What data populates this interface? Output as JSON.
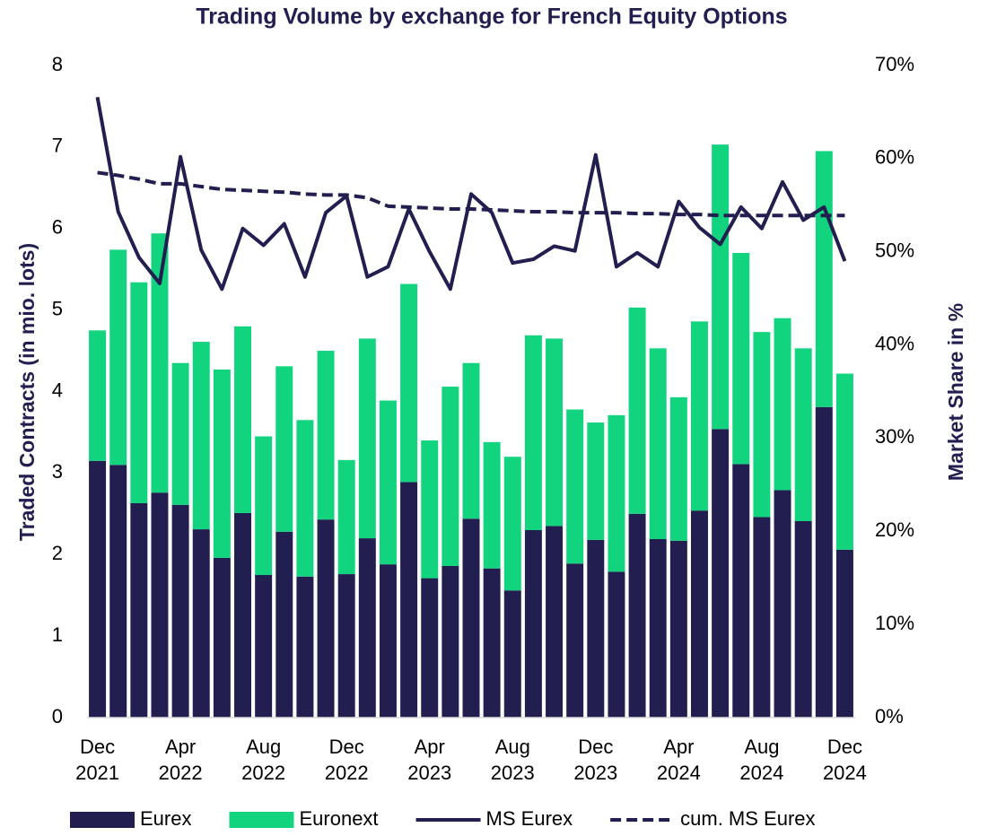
{
  "chart_data": {
    "type": "bar",
    "stacked": true,
    "title": "Trading Volume by exchange for French Equity Options",
    "y_label": "Traded Contracts (in mio. lots)",
    "y2_label": "Market Share in %",
    "categories": [
      "Dec\n2021",
      null,
      null,
      null,
      "Apr\n2022",
      null,
      null,
      null,
      "Aug\n2022",
      null,
      null,
      null,
      "Dec\n2022",
      null,
      null,
      null,
      "Apr\n2023",
      null,
      null,
      null,
      "Aug\n2023",
      null,
      null,
      null,
      "Dec\n2023",
      null,
      null,
      null,
      "Apr\n2024",
      null,
      null,
      null,
      "Aug\n2024",
      null,
      null,
      null,
      "Dec\n2024"
    ],
    "series": [
      {
        "name": "Eurex",
        "type": "bar",
        "color": "#221e50",
        "values": [
          3.15,
          3.1,
          2.63,
          2.76,
          2.61,
          2.31,
          1.96,
          2.51,
          1.75,
          2.28,
          1.73,
          2.43,
          1.76,
          2.2,
          1.88,
          2.89,
          1.71,
          1.86,
          2.44,
          1.83,
          1.56,
          2.3,
          2.35,
          1.89,
          2.18,
          1.79,
          2.5,
          2.19,
          2.17,
          2.54,
          3.54,
          3.11,
          2.46,
          2.79,
          2.41,
          3.81,
          2.06
        ]
      },
      {
        "name": "Euronext",
        "type": "bar",
        "color": "#12d47f",
        "values": [
          1.6,
          2.64,
          2.71,
          3.18,
          1.74,
          2.3,
          2.31,
          2.29,
          1.7,
          2.03,
          1.92,
          2.07,
          1.4,
          2.45,
          2.01,
          2.43,
          1.69,
          2.2,
          1.91,
          1.55,
          1.64,
          2.39,
          2.3,
          1.89,
          1.44,
          1.92,
          2.53,
          2.34,
          1.76,
          2.32,
          3.49,
          2.59,
          2.27,
          2.11,
          2.12,
          3.14,
          2.16
        ]
      },
      {
        "name": "MS Eurex",
        "type": "line",
        "axis": "y2",
        "color": "#221e50",
        "dashed": false,
        "values": [
          66.6,
          54.3,
          49.4,
          46.6,
          60.2,
          50.2,
          46.0,
          52.5,
          50.7,
          53.0,
          47.3,
          54.2,
          56.0,
          47.3,
          48.4,
          54.6,
          50.0,
          46.0,
          56.2,
          54.2,
          48.8,
          49.2,
          50.6,
          50.1,
          60.4,
          48.4,
          49.9,
          48.4,
          55.4,
          52.6,
          50.8,
          54.8,
          52.5,
          57.5,
          53.4,
          54.8,
          49.0
        ]
      },
      {
        "name": "cum. MS Eurex",
        "type": "line",
        "axis": "y2",
        "color": "#221e50",
        "dashed": true,
        "values": [
          58.5,
          58.2,
          57.8,
          57.3,
          57.3,
          57.0,
          56.7,
          56.6,
          56.5,
          56.4,
          56.2,
          56.1,
          56.1,
          55.8,
          54.9,
          54.8,
          54.7,
          54.6,
          54.6,
          54.5,
          54.4,
          54.3,
          54.3,
          54.2,
          54.2,
          54.2,
          54.1,
          54.1,
          54.0,
          54.0,
          53.9,
          53.9,
          53.9,
          53.9,
          53.9,
          53.9,
          53.9
        ]
      }
    ],
    "ylim": [
      0,
      8
    ],
    "yticks": [
      0,
      1,
      2,
      3,
      4,
      5,
      6,
      7,
      8
    ],
    "y2lim": [
      0,
      70
    ],
    "y2ticks": [
      {
        "value": 0,
        "label": "0%"
      },
      {
        "value": 10,
        "label": "10%"
      },
      {
        "value": 20,
        "label": "20%"
      },
      {
        "value": 30,
        "label": "30%"
      },
      {
        "value": 40,
        "label": "40%"
      },
      {
        "value": 50,
        "label": "50%"
      },
      {
        "value": 60,
        "label": "60%"
      },
      {
        "value": 70,
        "label": "70%"
      }
    ],
    "grid": false,
    "legend": "bottom"
  }
}
